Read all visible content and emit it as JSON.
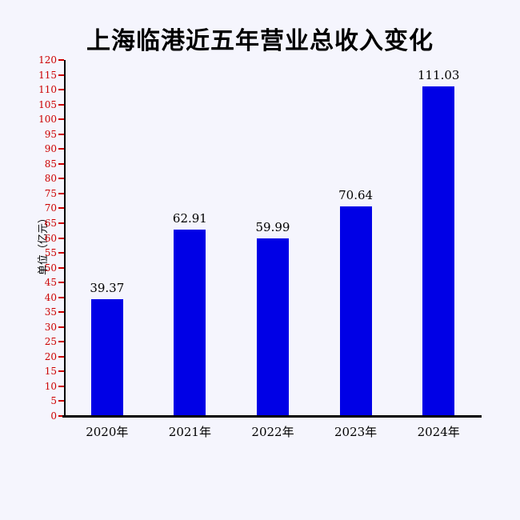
{
  "title": "上海临港近五年营业总收入变化",
  "chart_data": {
    "type": "bar",
    "title": "上海临港近五年营业总收入变化",
    "categories": [
      "2020年",
      "2021年",
      "2022年",
      "2023年",
      "2024年"
    ],
    "values": [
      39.37,
      62.91,
      59.99,
      70.64,
      111.03
    ],
    "value_labels": [
      "39.37",
      "62.91",
      "59.99",
      "70.64",
      "111.03"
    ],
    "xlabel": "",
    "ylabel": "单位（亿元）",
    "ylim": [
      0,
      120
    ],
    "ytick_step": 5,
    "grid": false,
    "legend": false,
    "colors": {
      "bar": "#0000e6",
      "tick_label": "#cc0000",
      "tick_mark": "#cc0000",
      "axis": "#000000",
      "background": "#f5f5fd"
    }
  }
}
